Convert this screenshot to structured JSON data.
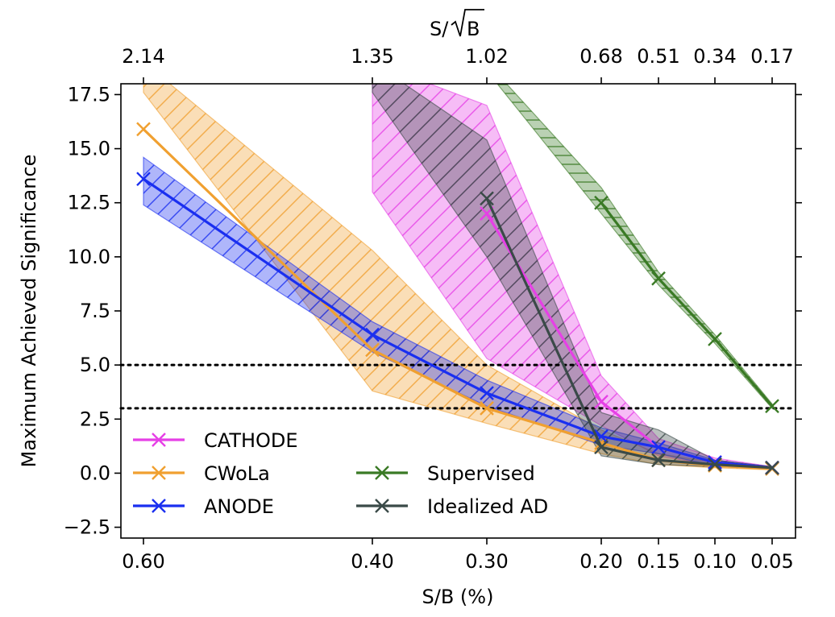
{
  "chart_data": {
    "type": "line",
    "xlabel": "S/B (%)",
    "ylabel": "Maximum Achieved Significance",
    "top_xlabel": "S/√B",
    "top_xlabel_parts": [
      "S/",
      "B"
    ],
    "x_ticks": [
      "0.60",
      "0.40",
      "0.30",
      "0.20",
      "0.15",
      "0.10",
      "0.05"
    ],
    "x": [
      0.6,
      0.4,
      0.3,
      0.2,
      0.15,
      0.1,
      0.05
    ],
    "top_x_ticks": [
      "2.14",
      "1.35",
      "1.02",
      "0.68",
      "0.51",
      "0.34",
      "0.17"
    ],
    "y_ticks": [
      "−2.5",
      "0.0",
      "2.5",
      "5.0",
      "7.5",
      "10.0",
      "12.5",
      "15.0",
      "17.5"
    ],
    "y_tick_values": [
      -2.5,
      0.0,
      2.5,
      5.0,
      7.5,
      10.0,
      12.5,
      15.0,
      17.5
    ],
    "ylim": [
      -3.0,
      18.0
    ],
    "hlines": [
      5.0,
      3.0
    ],
    "hline_style": "dotted",
    "legend_position": "lower-left",
    "series": [
      {
        "name": "CATHODE",
        "color": "#e640e6",
        "values": [
          null,
          null,
          12.0,
          3.3,
          1.2,
          0.5,
          0.25
        ],
        "band_low": [
          null,
          null,
          5.3,
          2.2,
          0.8,
          0.35,
          0.2
        ],
        "band_high": [
          null,
          null,
          17.0,
          4.5,
          1.6,
          0.7,
          0.3
        ],
        "band_hatch": "diagonal"
      },
      {
        "name": "CWoLa",
        "color": "#f0a030",
        "values": [
          15.9,
          5.7,
          3.0,
          1.4,
          0.6,
          0.35,
          0.2
        ],
        "band_low": [
          null,
          3.8,
          2.3,
          0.9,
          0.4,
          0.25,
          0.15
        ],
        "band_high": [
          null,
          10.3,
          5.0,
          2.0,
          0.9,
          0.5,
          0.3
        ],
        "band_hatch": "diagonal"
      },
      {
        "name": "ANODE",
        "color": "#1a2ff0",
        "values": [
          13.6,
          6.4,
          3.7,
          1.7,
          1.2,
          0.5,
          0.25
        ],
        "band_low": [
          12.4,
          5.6,
          3.1,
          1.3,
          0.9,
          0.35,
          0.2
        ],
        "band_high": [
          14.6,
          7.0,
          4.3,
          2.1,
          1.4,
          0.6,
          0.3
        ],
        "band_hatch": "diagonal"
      },
      {
        "name": "Supervised",
        "color": "#3a7a25",
        "values": [
          null,
          null,
          null,
          12.5,
          9.0,
          6.2,
          3.1
        ],
        "band_low": [
          null,
          null,
          null,
          12.0,
          8.7,
          6.0,
          3.0
        ],
        "band_high": [
          null,
          null,
          null,
          13.2,
          9.3,
          6.4,
          3.2
        ],
        "band_hatch": "horizontal"
      },
      {
        "name": "Idealized AD",
        "color": "#3a4a48",
        "values": [
          null,
          null,
          12.7,
          1.2,
          0.6,
          0.4,
          0.25
        ],
        "band_low": [
          null,
          null,
          10.0,
          0.8,
          0.4,
          0.3,
          0.2
        ],
        "band_high": [
          null,
          null,
          15.4,
          2.8,
          2.0,
          0.6,
          0.3
        ],
        "band_hatch": "diagonal"
      }
    ],
    "legend_order": [
      "CATHODE",
      "CWoLa",
      "ANODE",
      "Supervised",
      "Idealized AD"
    ],
    "hidden_segment_starts": {
      "CATHODE": {
        "value": 17.6,
        "band_low": 13.0,
        "band_high": 19.0
      },
      "Idealized AD": {
        "value": 18.5,
        "band_low": 17.6,
        "band_high": 19.0
      },
      "Supervised": {
        "value": 19.0,
        "band_low": 18.6,
        "band_high": 19.0
      },
      "CWoLa_band_high_at_0.60": 19.0,
      "CWoLa_band_low_at_0.60": 17.6
    }
  }
}
